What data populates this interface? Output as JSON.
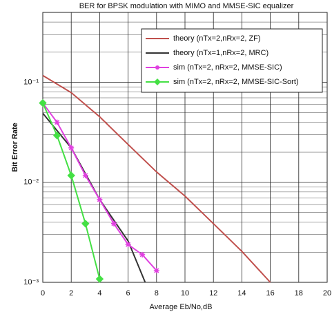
{
  "chart_data": {
    "type": "line",
    "title": "BER for BPSK modulation with MIMO and MMSE-SIC equalizer",
    "x_label": "Average Eb/No,dB",
    "y_label": "Bit Error Rate",
    "log_y": true,
    "grid": true,
    "legend": "top-right",
    "xlim": [
      0,
      20
    ],
    "xticks": [
      0,
      2,
      4,
      6,
      8,
      10,
      12,
      14,
      16,
      18,
      20
    ],
    "ylim": [
      0.001,
      0.5
    ],
    "yticks": [
      {
        "value": 0.001,
        "label": "10⁻³"
      },
      {
        "value": 0.01,
        "label": "10⁻²"
      },
      {
        "value": 0.1,
        "label": "10⁻¹"
      }
    ],
    "series": [
      {
        "name": "theory (nTx=2,nRx=2, ZF)",
        "color": "#c0504d",
        "marker": "none",
        "x": [
          0,
          2,
          4,
          6,
          8,
          10,
          12,
          14,
          16
        ],
        "values": [
          0.117,
          0.0788,
          0.0452,
          0.0239,
          0.0127,
          0.00728,
          0.00386,
          0.00204,
          0.001
        ]
      },
      {
        "name": "theory (nTx=1,nRx=2, MRC)",
        "color": "#333333",
        "marker": "none",
        "x": [
          0,
          2,
          4,
          6,
          7.2
        ],
        "values": [
          0.049,
          0.0221,
          0.00672,
          0.00259,
          0.001
        ]
      },
      {
        "name": "sim (nTx=2, nRx=2, MMSE-SIC)",
        "color": "#e040e0",
        "marker": "star",
        "x": [
          0,
          1,
          2,
          3,
          4,
          5,
          6,
          7,
          8
        ],
        "values": [
          0.0621,
          0.0398,
          0.0221,
          0.0117,
          0.00672,
          0.00386,
          0.00239,
          0.00189,
          0.00131
        ]
      },
      {
        "name": "sim (nTx=2, nRx=2, MMSE-SIC-Sort)",
        "color": "#44e044",
        "marker": "diamond",
        "x": [
          0,
          1,
          2,
          3,
          4
        ],
        "values": [
          0.0621,
          0.0294,
          0.0117,
          0.00386,
          0.00108
        ]
      }
    ]
  }
}
